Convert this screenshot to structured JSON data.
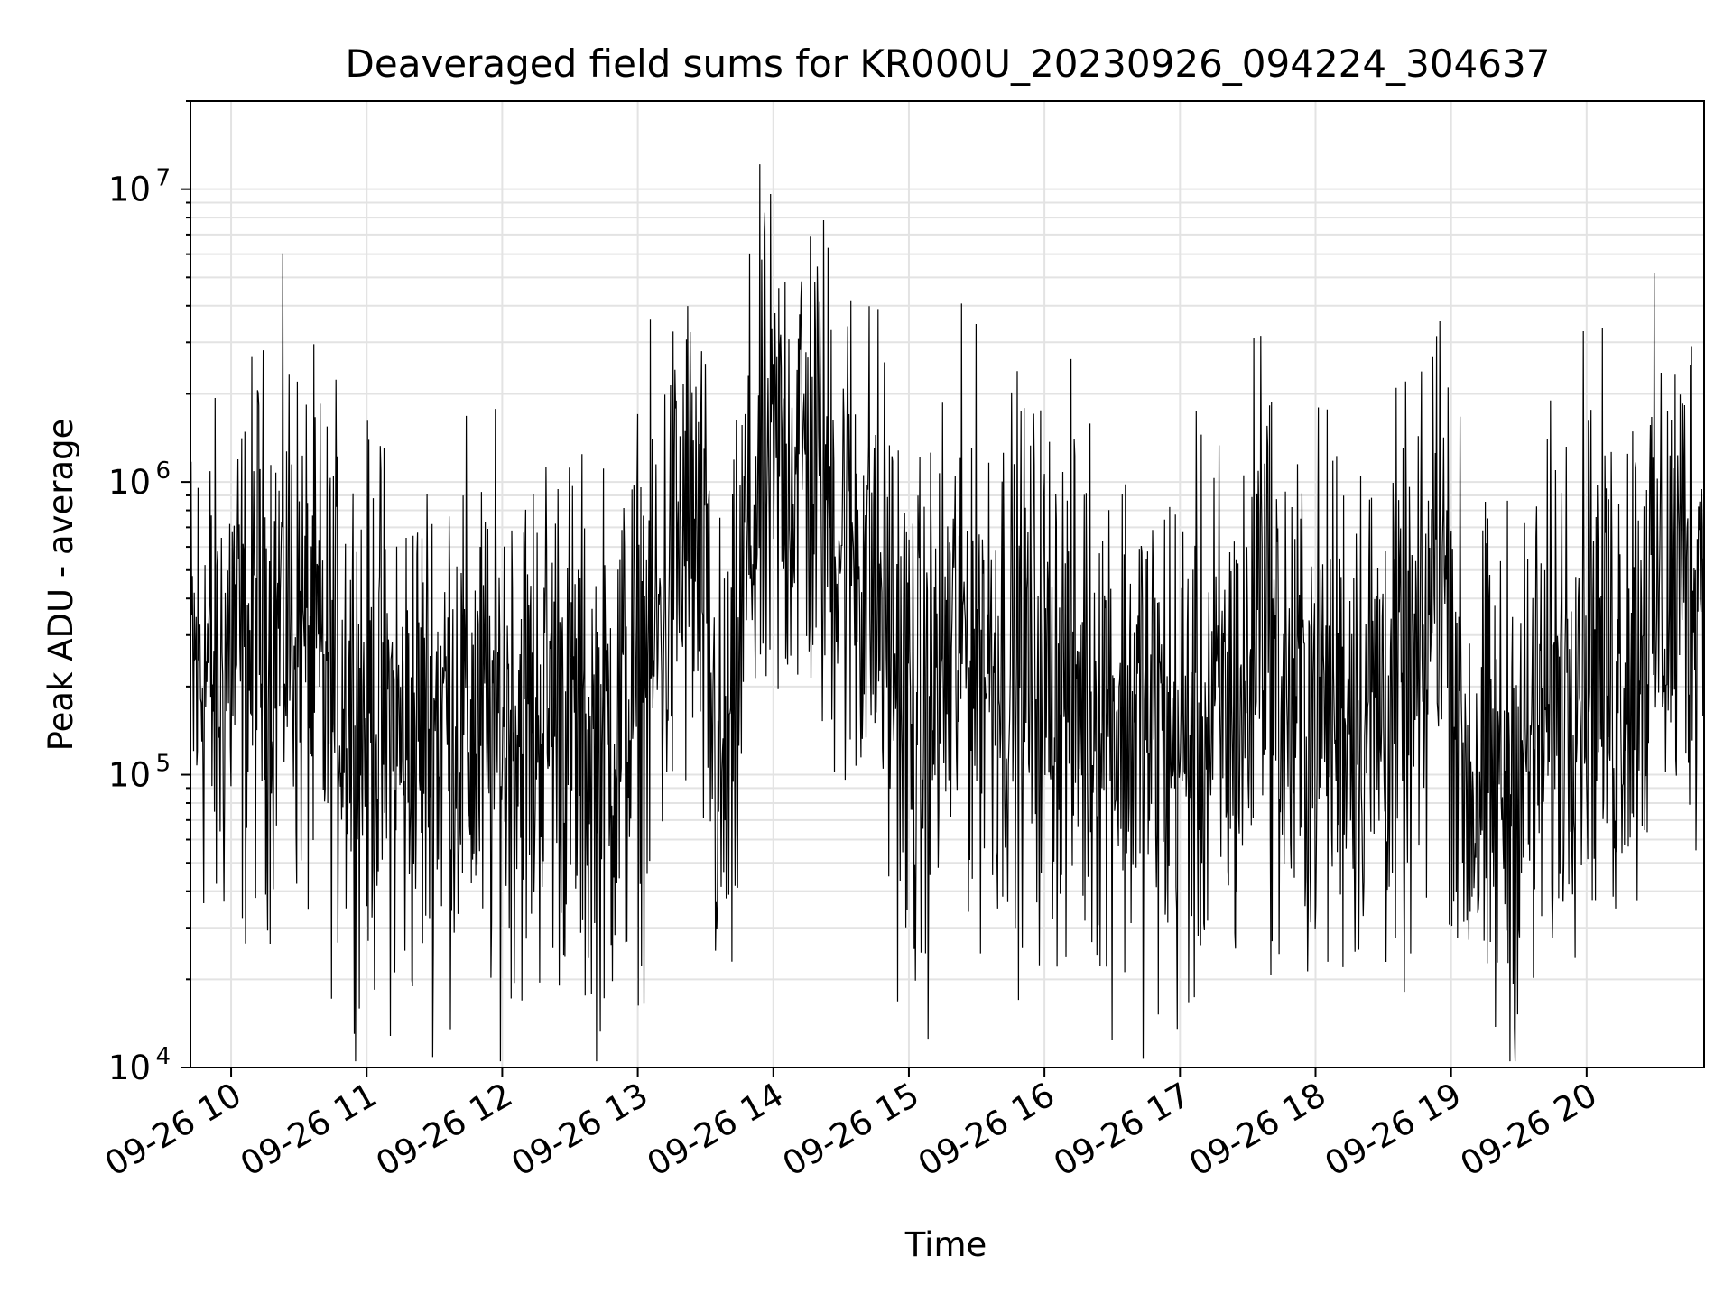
{
  "chart_data": {
    "type": "line",
    "title": "Deaveraged field sums for KR000U_20230926_094224_304637",
    "xlabel": "Time",
    "ylabel": "Peak ADU - average",
    "xlim": [
      "2023-09-26T09:42",
      "2023-09-26T20:52"
    ],
    "ylim": [
      10000,
      20000000
    ],
    "yscale": "log",
    "grid": true,
    "legend": "none",
    "line_color": "#000000",
    "x_ticks": [
      {
        "t": "2023-09-26T10:00",
        "label": "09-26 10"
      },
      {
        "t": "2023-09-26T11:00",
        "label": "09-26 11"
      },
      {
        "t": "2023-09-26T12:00",
        "label": "09-26 12"
      },
      {
        "t": "2023-09-26T13:00",
        "label": "09-26 13"
      },
      {
        "t": "2023-09-26T14:00",
        "label": "09-26 14"
      },
      {
        "t": "2023-09-26T15:00",
        "label": "09-26 15"
      },
      {
        "t": "2023-09-26T16:00",
        "label": "09-26 16"
      },
      {
        "t": "2023-09-26T17:00",
        "label": "09-26 17"
      },
      {
        "t": "2023-09-26T18:00",
        "label": "09-26 18"
      },
      {
        "t": "2023-09-26T19:00",
        "label": "09-26 19"
      },
      {
        "t": "2023-09-26T20:00",
        "label": "09-26 20"
      }
    ],
    "y_ticks": [
      {
        "v": 10000,
        "base": "10",
        "exp": "4"
      },
      {
        "v": 100000,
        "base": "10",
        "exp": "5"
      },
      {
        "v": 1000000,
        "base": "10",
        "exp": "6"
      },
      {
        "v": 10000000,
        "base": "10",
        "exp": "7"
      }
    ],
    "series": [
      {
        "x": [
          "09:42",
          "09:48",
          "09:54",
          "10:00",
          "10:06",
          "10:12",
          "10:18",
          "10:24",
          "10:30",
          "10:36",
          "10:42",
          "10:48",
          "10:54",
          "11:00",
          "11:06",
          "11:12",
          "11:18",
          "11:24",
          "11:30",
          "11:36",
          "11:42",
          "11:48",
          "11:54",
          "12:00",
          "12:06",
          "12:12",
          "12:18",
          "12:24",
          "12:30",
          "12:36",
          "12:42",
          "12:48",
          "12:54",
          "13:00",
          "13:06",
          "13:12",
          "13:18",
          "13:24",
          "13:30",
          "13:36",
          "13:42",
          "13:48",
          "13:54",
          "14:00",
          "14:06",
          "14:12",
          "14:18",
          "14:24",
          "14:30",
          "14:36",
          "14:42",
          "14:48",
          "14:54",
          "15:00",
          "15:06",
          "15:12",
          "15:18",
          "15:24",
          "15:30",
          "15:36",
          "15:42",
          "15:48",
          "15:54",
          "16:00",
          "16:06",
          "16:12",
          "16:18",
          "16:24",
          "16:30",
          "16:36",
          "16:42",
          "16:48",
          "16:54",
          "17:00",
          "17:06",
          "17:12",
          "17:18",
          "17:24",
          "17:30",
          "17:36",
          "17:42",
          "17:48",
          "17:54",
          "18:00",
          "18:06",
          "18:12",
          "18:18",
          "18:24",
          "18:30",
          "18:36",
          "18:42",
          "18:48",
          "18:54",
          "19:00",
          "19:06",
          "19:12",
          "19:18",
          "19:24",
          "19:30",
          "19:36",
          "19:42",
          "19:48",
          "19:54",
          "20:00",
          "20:06",
          "20:12",
          "20:18",
          "20:24",
          "20:30",
          "20:36",
          "20:42",
          "20:48",
          "20:52"
        ],
        "y": [
          200000,
          250000,
          180000,
          300000,
          220000,
          350000,
          280000,
          400000,
          300000,
          250000,
          200000,
          220000,
          180000,
          150000,
          160000,
          130000,
          120000,
          140000,
          160000,
          170000,
          150000,
          140000,
          130000,
          150000,
          160000,
          140000,
          170000,
          180000,
          150000,
          120000,
          110000,
          130000,
          150000,
          200000,
          250000,
          350000,
          600000,
          700000,
          300000,
          80000,
          100000,
          600000,
          900000,
          1000000,
          1200000,
          1300000,
          1100000,
          900000,
          700000,
          600000,
          500000,
          400000,
          250000,
          150000,
          120000,
          200000,
          250000,
          300000,
          280000,
          260000,
          250000,
          240000,
          230000,
          220000,
          210000,
          200000,
          190000,
          180000,
          170000,
          160000,
          150000,
          140000,
          130000,
          120000,
          130000,
          140000,
          150000,
          160000,
          180000,
          650000,
          200000,
          170000,
          160000,
          170000,
          180000,
          190000,
          180000,
          170000,
          180000,
          170000,
          190000,
          200000,
          800000,
          300000,
          100000,
          90000,
          80000,
          90000,
          100000,
          120000,
          150000,
          200000,
          280000,
          320000,
          250000,
          200000,
          280000,
          320000,
          380000,
          420000,
          500000,
          550000,
          600000
        ]
      }
    ]
  }
}
